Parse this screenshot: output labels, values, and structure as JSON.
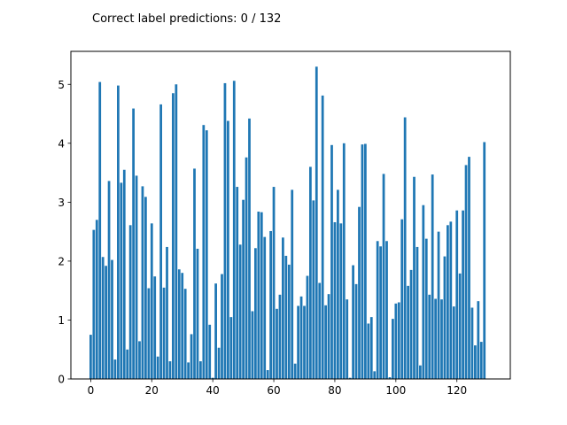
{
  "chart_data": {
    "type": "bar",
    "title": "Correct label predictions: 0 / 132",
    "xlabel": "",
    "ylabel": "",
    "xlim": [
      -6.5,
      137.5
    ],
    "ylim": [
      0,
      5.56
    ],
    "xticks": [
      0,
      20,
      40,
      60,
      80,
      100,
      120
    ],
    "yticks": [
      0,
      1,
      2,
      3,
      4,
      5
    ],
    "grid": false,
    "bar_color": "#1f77b4",
    "x": [
      0,
      1,
      2,
      3,
      4,
      5,
      6,
      7,
      8,
      9,
      10,
      11,
      12,
      13,
      14,
      15,
      16,
      17,
      18,
      19,
      20,
      21,
      22,
      23,
      24,
      25,
      26,
      27,
      28,
      29,
      30,
      31,
      32,
      33,
      34,
      35,
      36,
      37,
      38,
      39,
      40,
      41,
      42,
      43,
      44,
      45,
      46,
      47,
      48,
      49,
      50,
      51,
      52,
      53,
      54,
      55,
      56,
      57,
      58,
      59,
      60,
      61,
      62,
      63,
      64,
      65,
      66,
      67,
      68,
      69,
      70,
      71,
      72,
      73,
      74,
      75,
      76,
      77,
      78,
      79,
      80,
      81,
      82,
      83,
      84,
      85,
      86,
      87,
      88,
      89,
      90,
      91,
      92,
      93,
      94,
      95,
      96,
      97,
      98,
      99,
      100,
      101,
      102,
      103,
      104,
      105,
      106,
      107,
      108,
      109,
      110,
      111,
      112,
      113,
      114,
      115,
      116,
      117,
      118,
      119,
      120,
      121,
      122,
      123,
      124,
      125,
      126,
      127,
      128,
      129,
      130,
      131
    ],
    "values": [
      0.75,
      2.53,
      2.7,
      5.04,
      2.07,
      1.92,
      3.36,
      2.02,
      0.33,
      4.98,
      3.33,
      3.55,
      0.5,
      2.61,
      4.59,
      3.45,
      0.64,
      3.27,
      3.09,
      1.54,
      2.64,
      1.74,
      0.38,
      4.66,
      1.55,
      2.24,
      0.3,
      4.85,
      5.0,
      1.86,
      1.8,
      1.53,
      0.28,
      0.76,
      3.57,
      2.21,
      0.3,
      4.31,
      4.22,
      0.92,
      0.02,
      1.62,
      0.53,
      1.78,
      5.02,
      4.38,
      1.05,
      5.06,
      3.26,
      2.28,
      3.04,
      3.76,
      4.42,
      1.15,
      2.22,
      2.84,
      2.83,
      2.41,
      0.15,
      2.51,
      3.26,
      1.19,
      1.43,
      2.4,
      2.09,
      1.94,
      3.21,
      0.26,
      1.24,
      1.4,
      1.24,
      1.75,
      3.6,
      3.03,
      5.3,
      1.63,
      4.81,
      1.25,
      1.44,
      3.97,
      2.66,
      3.21,
      2.64,
      4.0,
      1.35,
      0.02,
      1.93,
      1.61,
      2.92,
      3.98,
      3.99,
      0.94,
      1.05,
      0.13,
      2.34,
      2.25,
      3.48,
      2.34,
      0.03,
      1.02,
      1.28,
      1.3,
      2.71,
      4.44,
      1.58,
      1.85,
      3.43,
      2.24,
      0.23,
      2.95,
      2.38,
      1.43,
      3.47,
      1.36,
      2.5,
      1.35,
      2.08,
      2.61,
      2.67,
      1.23,
      2.86,
      1.79,
      2.86,
      3.63,
      3.77,
      1.21,
      0.57,
      1.32,
      0.63,
      4.02,
      0.0,
      0.0
    ]
  }
}
